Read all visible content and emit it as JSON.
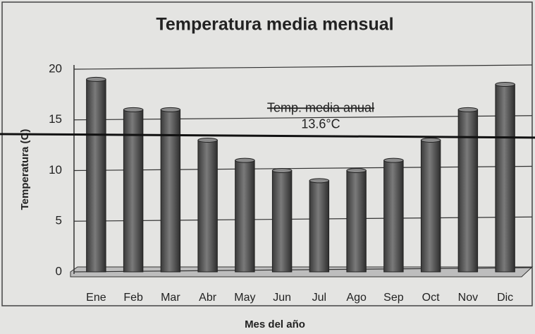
{
  "chart_data": {
    "type": "bar",
    "title": "Temperatura media mensual",
    "x_label": "Mes del año",
    "y_label": "Temperatura (C)",
    "categories": [
      "Ene",
      "Feb",
      "Mar",
      "Abr",
      "May",
      "Jun",
      "Jul",
      "Ago",
      "Sep",
      "Oct",
      "Nov",
      "Dic"
    ],
    "values": [
      19,
      16,
      16,
      13,
      11,
      10,
      9,
      10,
      11,
      13,
      16,
      18.5
    ],
    "color": "#555555",
    "ylim": [
      0,
      20
    ],
    "yticks": [
      0,
      5,
      10,
      15,
      20
    ],
    "grid": true,
    "reference_line": {
      "value": 13.6,
      "label": "Temp. media anual",
      "value_label": "13.6°C"
    }
  }
}
